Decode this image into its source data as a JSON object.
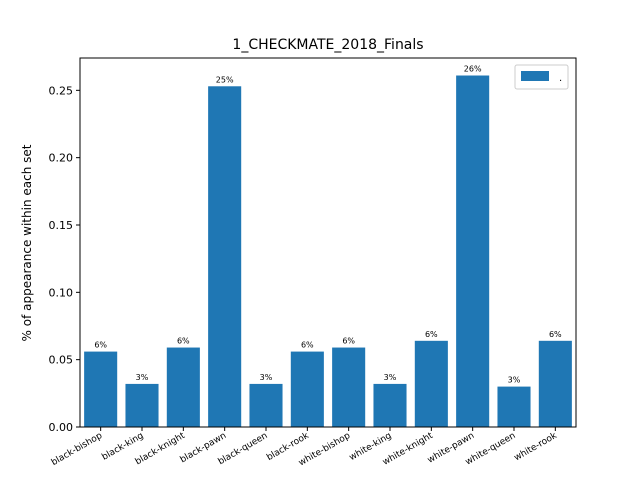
{
  "chart_data": {
    "type": "bar",
    "title": "1_CHECKMATE_2018_Finals",
    "xlabel": "",
    "ylabel": "% of appearance within each set",
    "categories": [
      "black-bishop",
      "black-king",
      "black-knight",
      "black-pawn",
      "black-queen",
      "black-rook",
      "white-bishop",
      "white-king",
      "white-knight",
      "white-pawn",
      "white-queen",
      "white-rook"
    ],
    "series": [
      {
        "name": ".",
        "color": "#1f77b4",
        "values": [
          0.056,
          0.032,
          0.059,
          0.253,
          0.032,
          0.056,
          0.059,
          0.032,
          0.064,
          0.261,
          0.03,
          0.064
        ],
        "labels": [
          "6%",
          "3%",
          "6%",
          "25%",
          "3%",
          "6%",
          "6%",
          "3%",
          "6%",
          "26%",
          "3%",
          "6%"
        ]
      }
    ],
    "ylim": [
      0,
      0.274
    ],
    "yticks": [
      "0.00",
      "0.05",
      "0.10",
      "0.15",
      "0.20",
      "0.25"
    ],
    "ytick_values": [
      0,
      0.05,
      0.1,
      0.15,
      0.2,
      0.25
    ],
    "grid": false,
    "legend_position": "top-right"
  }
}
